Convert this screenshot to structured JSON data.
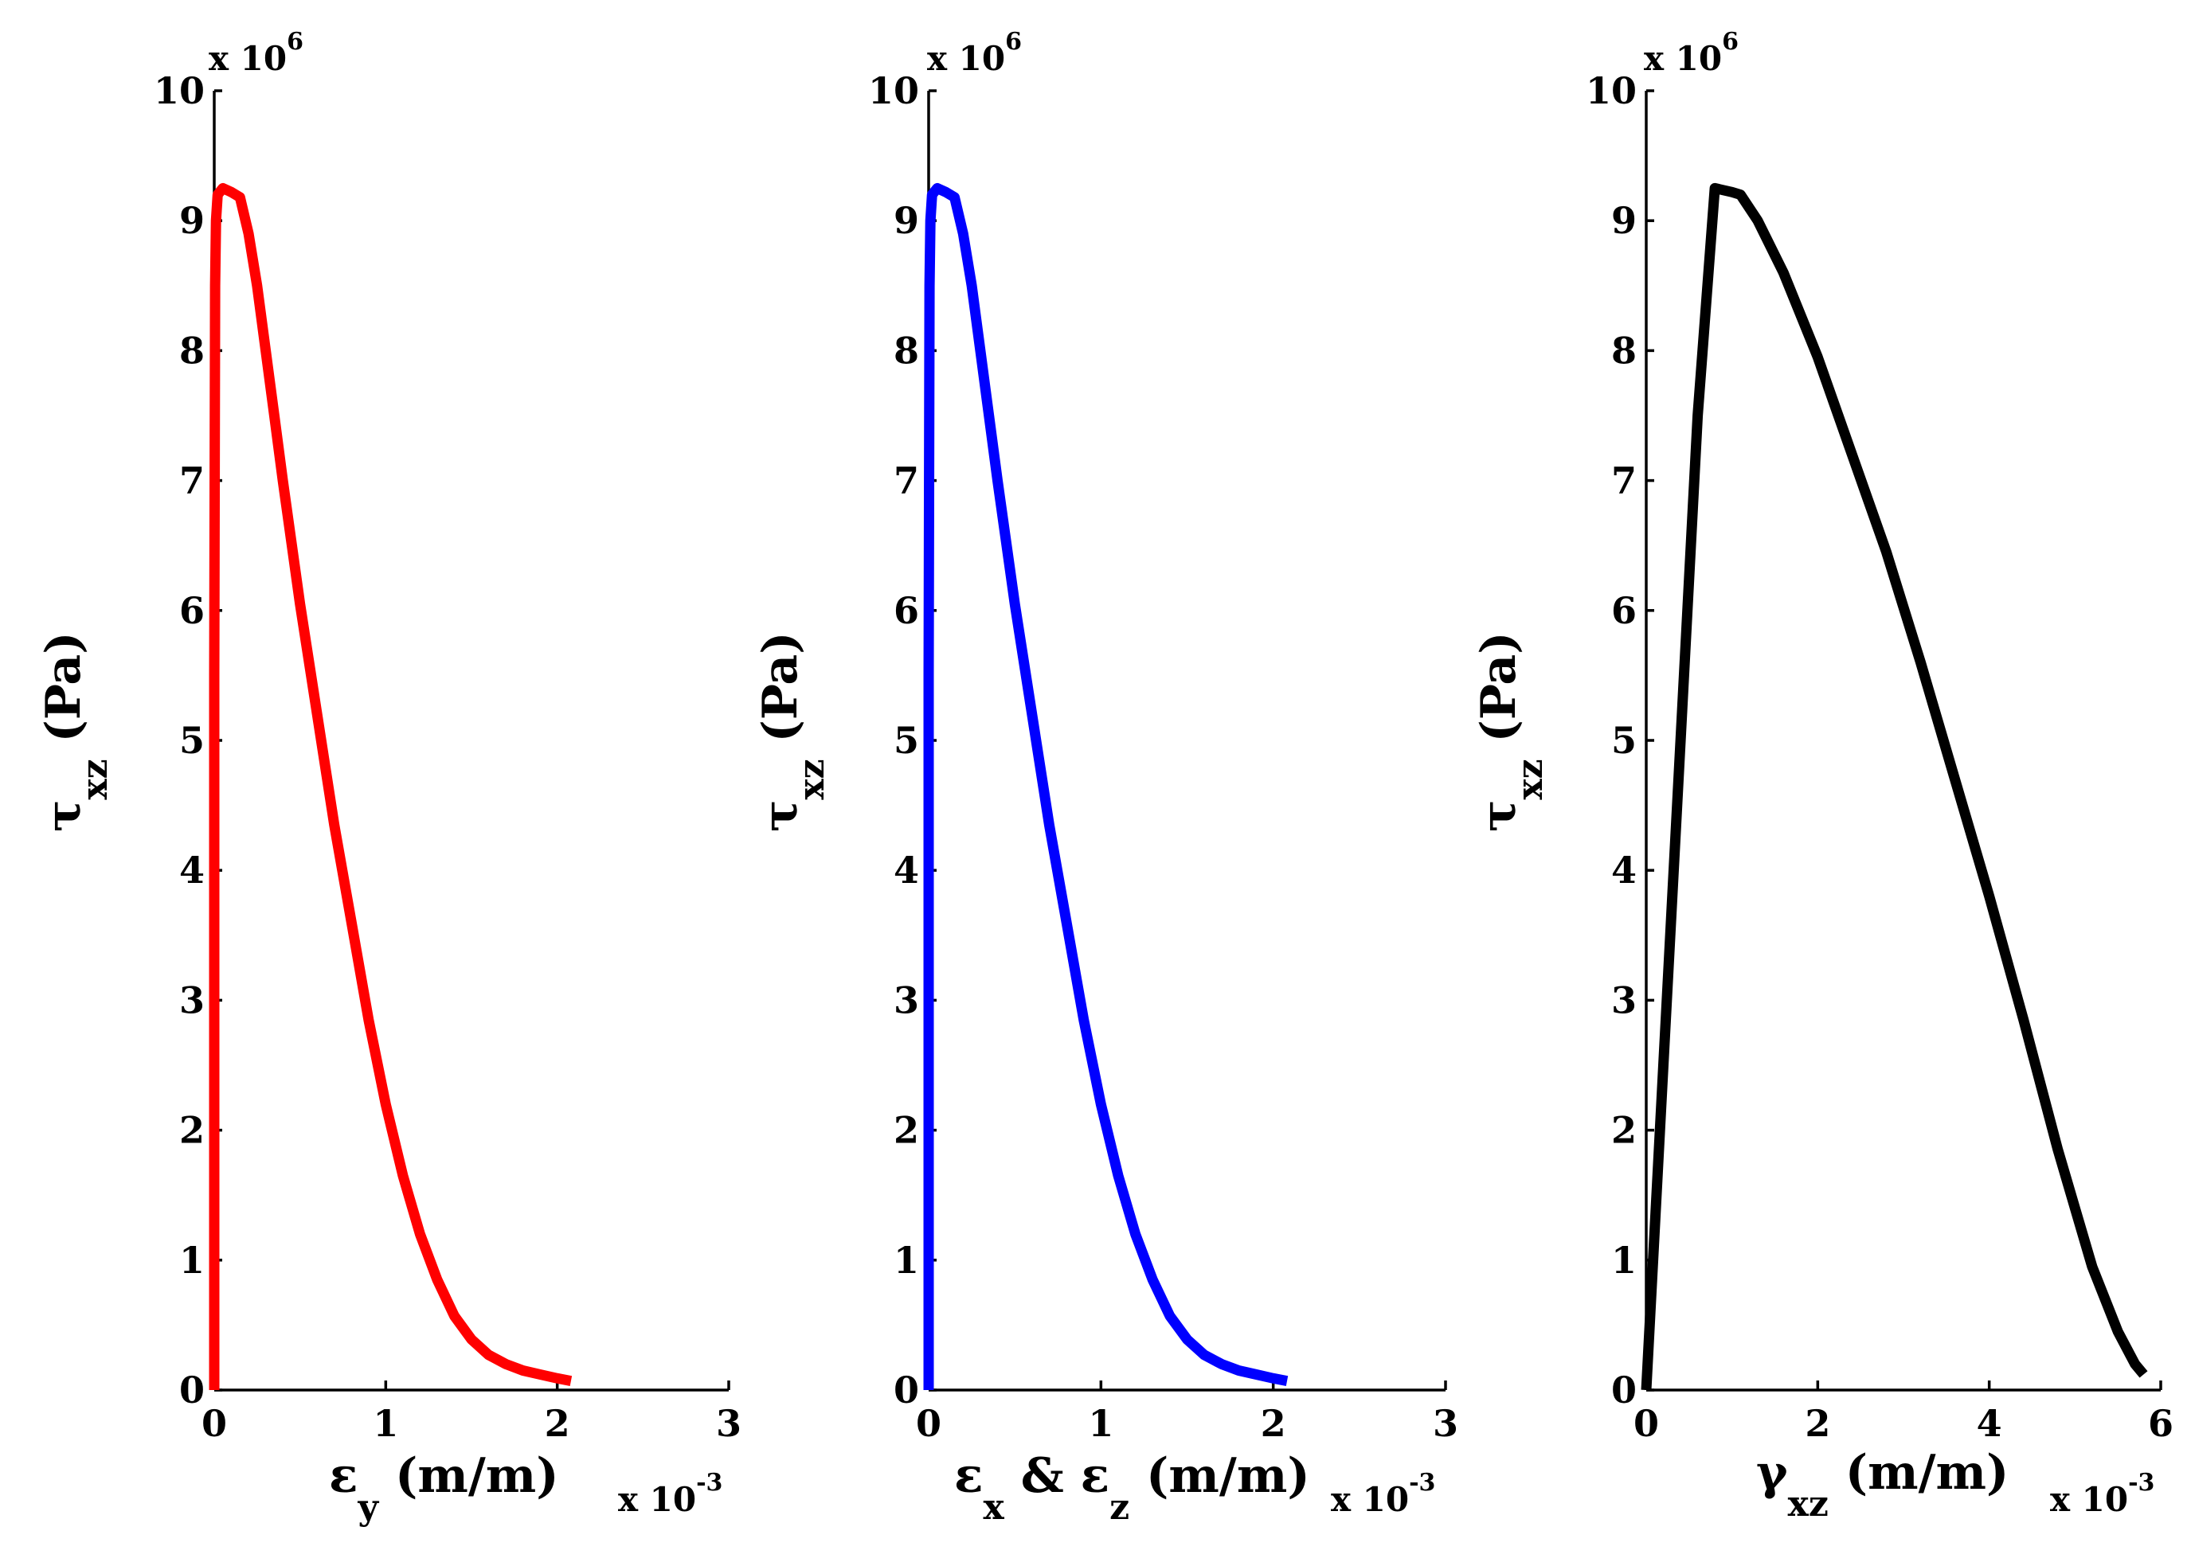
{
  "chart_data": [
    {
      "type": "line",
      "title": "",
      "color": "#ff0000",
      "xlabel": {
        "symbol": "ε",
        "subscript": "y",
        "units": " (m/m)"
      },
      "ylabel": {
        "symbol": "τ",
        "subscript": "xz",
        "units": " (Pa)"
      },
      "x_multiplier": {
        "base": "x 10",
        "exponent": "-3"
      },
      "y_multiplier": {
        "base": "x 10",
        "exponent": "6"
      },
      "xlim": [
        0,
        3
      ],
      "ylim": [
        0,
        10
      ],
      "xticks": [
        "0",
        "1",
        "2",
        "3"
      ],
      "yticks": [
        "0",
        "1",
        "2",
        "3",
        "4",
        "5",
        "6",
        "7",
        "8",
        "9",
        "10"
      ],
      "series": [
        {
          "name": "epsilon_y",
          "x": [
            0,
            0,
            0.005,
            0.01,
            0.02,
            0.05,
            0.1,
            0.15,
            0.2,
            0.25,
            0.3,
            0.35,
            0.4,
            0.5,
            0.6,
            0.7,
            0.8,
            0.9,
            1.0,
            1.1,
            1.2,
            1.3,
            1.4,
            1.5,
            1.6,
            1.7,
            1.8,
            1.9,
            2.0,
            2.08
          ],
          "y": [
            0,
            5.5,
            8.5,
            9.0,
            9.2,
            9.25,
            9.22,
            9.18,
            8.9,
            8.5,
            8.0,
            7.5,
            7.0,
            6.05,
            5.2,
            4.35,
            3.6,
            2.85,
            2.2,
            1.65,
            1.2,
            0.85,
            0.57,
            0.39,
            0.27,
            0.2,
            0.15,
            0.12,
            0.09,
            0.07
          ]
        }
      ]
    },
    {
      "type": "line",
      "title": "",
      "color": "#0000ff",
      "xlabel": {
        "symbol1": "ε",
        "subscript1": "x",
        "amp": "  & ",
        "symbol2": "ε",
        "subscript2": "z",
        "units": " (m/m)"
      },
      "ylabel": {
        "symbol": "τ",
        "subscript": "xz",
        "units": " (Pa)"
      },
      "x_multiplier": {
        "base": "x 10",
        "exponent": "-3"
      },
      "y_multiplier": {
        "base": "x 10",
        "exponent": "6"
      },
      "xlim": [
        0,
        3
      ],
      "ylim": [
        0,
        10
      ],
      "xticks": [
        "0",
        "1",
        "2",
        "3"
      ],
      "yticks": [
        "0",
        "1",
        "2",
        "3",
        "4",
        "5",
        "6",
        "7",
        "8",
        "9",
        "10"
      ],
      "series": [
        {
          "name": "epsilon_x_and_z",
          "x": [
            0,
            0,
            0.005,
            0.01,
            0.02,
            0.05,
            0.1,
            0.15,
            0.2,
            0.25,
            0.3,
            0.35,
            0.4,
            0.5,
            0.6,
            0.7,
            0.8,
            0.9,
            1.0,
            1.1,
            1.2,
            1.3,
            1.4,
            1.5,
            1.6,
            1.7,
            1.8,
            1.9,
            2.0,
            2.08
          ],
          "y": [
            0,
            5.5,
            8.5,
            9.0,
            9.2,
            9.25,
            9.22,
            9.18,
            8.9,
            8.5,
            8.0,
            7.5,
            7.0,
            6.05,
            5.2,
            4.35,
            3.6,
            2.85,
            2.2,
            1.65,
            1.2,
            0.85,
            0.57,
            0.39,
            0.27,
            0.2,
            0.15,
            0.12,
            0.09,
            0.07
          ]
        }
      ]
    },
    {
      "type": "line",
      "title": "",
      "color": "#000000",
      "xlabel": {
        "symbol": "γ",
        "subscript": "xz",
        "units": " (m/m)"
      },
      "ylabel": {
        "symbol": "τ",
        "subscript": "xz",
        "units": " (Pa)"
      },
      "x_multiplier": {
        "base": "x 10",
        "exponent": "-3"
      },
      "y_multiplier": {
        "base": "x 10",
        "exponent": "6"
      },
      "xlim": [
        0,
        6
      ],
      "ylim": [
        0,
        10
      ],
      "xticks": [
        "0",
        "2",
        "4",
        "6"
      ],
      "yticks": [
        "0",
        "1",
        "2",
        "3",
        "4",
        "5",
        "6",
        "7",
        "8",
        "9",
        "10"
      ],
      "series": [
        {
          "name": "gamma_xz",
          "x": [
            0,
            0.2,
            0.4,
            0.6,
            0.8,
            1.0,
            1.1,
            1.3,
            1.6,
            2.0,
            2.4,
            2.8,
            3.2,
            3.6,
            4.0,
            4.4,
            4.8,
            5.2,
            5.5,
            5.7,
            5.8
          ],
          "y": [
            0,
            2.5,
            5.0,
            7.5,
            9.25,
            9.22,
            9.2,
            9.0,
            8.6,
            7.95,
            7.2,
            6.45,
            5.6,
            4.7,
            3.8,
            2.85,
            1.85,
            0.95,
            0.45,
            0.2,
            0.12
          ]
        }
      ]
    }
  ]
}
